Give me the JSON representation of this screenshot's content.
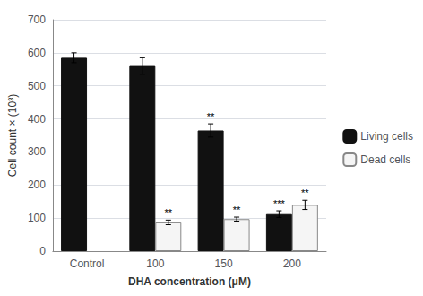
{
  "chart_data": {
    "type": "bar",
    "xlabel": "DHA concentration (μM)",
    "ylabel": "Cell count × (10³)",
    "categories": [
      "Control",
      "100",
      "150",
      "200"
    ],
    "series": [
      {
        "name": "Living cells",
        "color": "#111111",
        "values": [
          585,
          560,
          365,
          112
        ],
        "errors": [
          15,
          25,
          20,
          10
        ],
        "significance": [
          null,
          null,
          "**",
          "***"
        ]
      },
      {
        "name": "Dead cells",
        "color": "#f5f5f5",
        "values": [
          null,
          87,
          97,
          140
        ],
        "errors": [
          null,
          7,
          6,
          14
        ],
        "significance": [
          null,
          "**",
          "**",
          "**"
        ]
      }
    ],
    "ylim": [
      0,
      700
    ],
    "yticks": [
      0,
      100,
      200,
      300,
      400,
      500,
      600,
      700
    ],
    "grid": true,
    "legend": "right"
  }
}
